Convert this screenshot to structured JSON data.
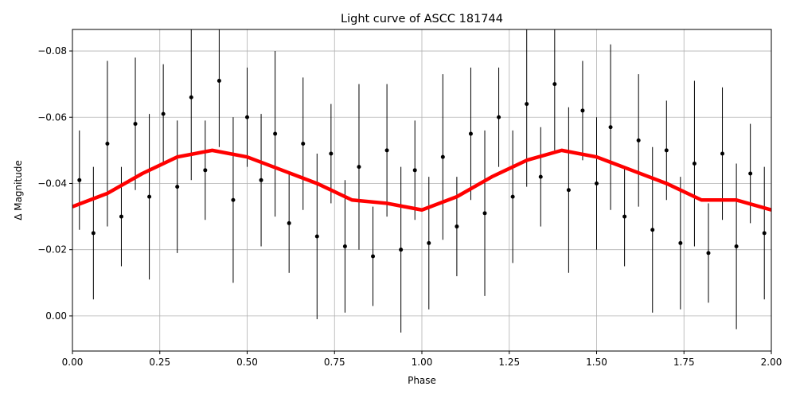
{
  "chart_data": {
    "type": "errorbar",
    "title": "Light curve of ASCC 181744",
    "x_label": "Phase",
    "y_label": "Δ Magnitude",
    "xlim": [
      0,
      2
    ],
    "ylim": [
      0.0106,
      -0.0865
    ],
    "xticks": [
      {
        "value": 0,
        "label": "0.00"
      },
      {
        "value": 0.25,
        "label": "0.25"
      },
      {
        "value": 0.5,
        "label": "0.50"
      },
      {
        "value": 0.75,
        "label": "0.75"
      },
      {
        "value": 1,
        "label": "1.00"
      },
      {
        "value": 1.25,
        "label": "1.25"
      },
      {
        "value": 1.5,
        "label": "1.50"
      },
      {
        "value": 1.75,
        "label": "1.75"
      },
      {
        "value": 2,
        "label": "2.00"
      }
    ],
    "yticks": [
      {
        "value": -0.08,
        "label": "−0.08"
      },
      {
        "value": -0.06,
        "label": "−0.06"
      },
      {
        "value": -0.04,
        "label": "−0.04"
      },
      {
        "value": -0.02,
        "label": "−0.02"
      },
      {
        "value": 0,
        "label": "0.00"
      }
    ],
    "grid": true,
    "series": [
      {
        "kind": "points",
        "color": "#000000",
        "x": [
          0.02,
          0.06,
          0.1,
          0.14,
          0.18,
          0.22,
          0.26,
          0.3,
          0.34,
          0.38,
          0.42,
          0.46,
          0.5,
          0.54,
          0.58,
          0.62,
          0.66,
          0.7,
          0.74,
          0.78,
          0.82,
          0.86,
          0.9,
          0.94,
          0.98,
          1.02,
          1.06,
          1.1,
          1.14,
          1.18,
          1.22,
          1.26,
          1.3,
          1.34,
          1.38,
          1.42,
          1.46,
          1.5,
          1.54,
          1.58,
          1.62,
          1.66,
          1.7,
          1.74,
          1.78,
          1.82,
          1.86,
          1.9,
          1.94,
          1.98
        ],
        "values": [
          -0.041,
          -0.025,
          -0.052,
          -0.03,
          -0.058,
          -0.036,
          -0.061,
          -0.039,
          -0.066,
          -0.044,
          -0.071,
          -0.035,
          -0.06,
          -0.041,
          -0.055,
          -0.028,
          -0.052,
          -0.024,
          -0.049,
          -0.021,
          -0.045,
          -0.018,
          -0.05,
          -0.02,
          -0.044,
          -0.022,
          -0.048,
          -0.027,
          -0.055,
          -0.031,
          -0.06,
          -0.036,
          -0.064,
          -0.042,
          -0.07,
          -0.038,
          -0.062,
          -0.04,
          -0.057,
          -0.03,
          -0.053,
          -0.026,
          -0.05,
          -0.022,
          -0.046,
          -0.019,
          -0.049,
          -0.021,
          -0.043,
          -0.025
        ],
        "errors": [
          0.015,
          0.02,
          0.025,
          0.015,
          0.02,
          0.025,
          0.015,
          0.02,
          0.025,
          0.015,
          0.02,
          0.025,
          0.015,
          0.02,
          0.025,
          0.015,
          0.02,
          0.025,
          0.015,
          0.02,
          0.025,
          0.015,
          0.02,
          0.025,
          0.015,
          0.02,
          0.025,
          0.015,
          0.02,
          0.025,
          0.015,
          0.02,
          0.025,
          0.015,
          0.02,
          0.025,
          0.015,
          0.02,
          0.025,
          0.015,
          0.02,
          0.025,
          0.015,
          0.02,
          0.025,
          0.015,
          0.02,
          0.025,
          0.015,
          0.02
        ]
      },
      {
        "kind": "line",
        "color": "#ff0000",
        "x": [
          0,
          0.1,
          0.2,
          0.3,
          0.4,
          0.5,
          0.6,
          0.7,
          0.8,
          0.9,
          1.0,
          1.1,
          1.2,
          1.3,
          1.4,
          1.5,
          1.6,
          1.7,
          1.8,
          1.9,
          2.0
        ],
        "values": [
          -0.033,
          -0.037,
          -0.043,
          -0.048,
          -0.05,
          -0.048,
          -0.044,
          -0.04,
          -0.035,
          -0.034,
          -0.032,
          -0.036,
          -0.042,
          -0.047,
          -0.05,
          -0.048,
          -0.044,
          -0.04,
          -0.035,
          -0.035,
          -0.032
        ]
      }
    ]
  }
}
